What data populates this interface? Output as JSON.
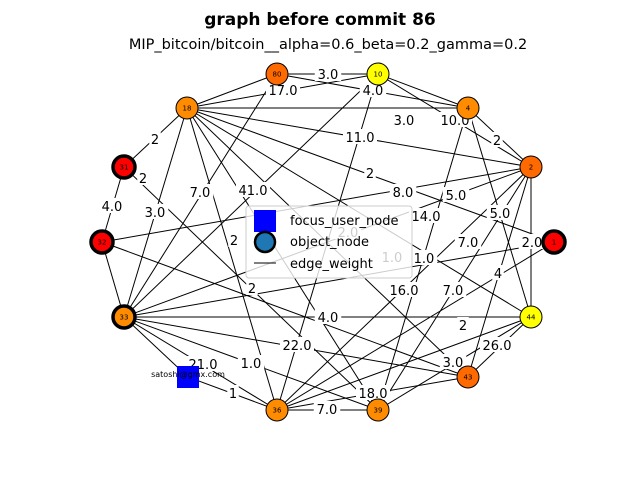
{
  "title": "graph before commit 86",
  "subtitle": "MIP_bitcoin/bitcoin__alpha=0.6_beta=0.2_gamma=0.2",
  "colors": {
    "red": "#ff0000",
    "orange_dark": "#ff6a00",
    "orange": "#ff8c00",
    "yellow": "#ffff00",
    "focus_blue": "#0000ff",
    "object_blue": "#1f77b4"
  },
  "legend": {
    "focus": "focus_user_node",
    "object": "object_node",
    "edge": "edge_weight"
  },
  "focus_node": {
    "label": "satoshi@gmx.com"
  },
  "nodes": [
    {
      "id": "80",
      "color": "orange_dark",
      "highlight": false
    },
    {
      "id": "10",
      "color": "yellow",
      "highlight": false
    },
    {
      "id": "4",
      "color": "orange",
      "highlight": false
    },
    {
      "id": "18",
      "color": "orange",
      "highlight": false
    },
    {
      "id": "2",
      "color": "orange_dark",
      "highlight": false
    },
    {
      "id": "31",
      "color": "red",
      "highlight": true
    },
    {
      "id": "1",
      "color": "red",
      "highlight": true
    },
    {
      "id": "32",
      "color": "red",
      "highlight": true
    },
    {
      "id": "33",
      "color": "orange",
      "highlight": true
    },
    {
      "id": "44",
      "color": "yellow",
      "highlight": false
    },
    {
      "id": "43",
      "color": "orange_dark",
      "highlight": false
    },
    {
      "id": "36",
      "color": "orange",
      "highlight": false
    },
    {
      "id": "39",
      "color": "orange",
      "highlight": false
    }
  ],
  "edge_labels": [
    "3.0",
    "17.0",
    "4.0",
    "3.0",
    "10.0",
    "2",
    "11.0",
    "2",
    "2",
    "4.0",
    "3.0",
    "7.0",
    "41.0",
    "2",
    "8.0",
    "14.0",
    "5.0",
    "5.0",
    "2.0",
    "7.0",
    "4",
    "1.0",
    "2",
    "2",
    "4.0",
    "22.0",
    "16.0",
    "7.0",
    "2",
    "26.0",
    "3.0",
    "21.0",
    "1.0",
    "1",
    "18.0",
    "7.0",
    "1.0",
    "2.0"
  ]
}
